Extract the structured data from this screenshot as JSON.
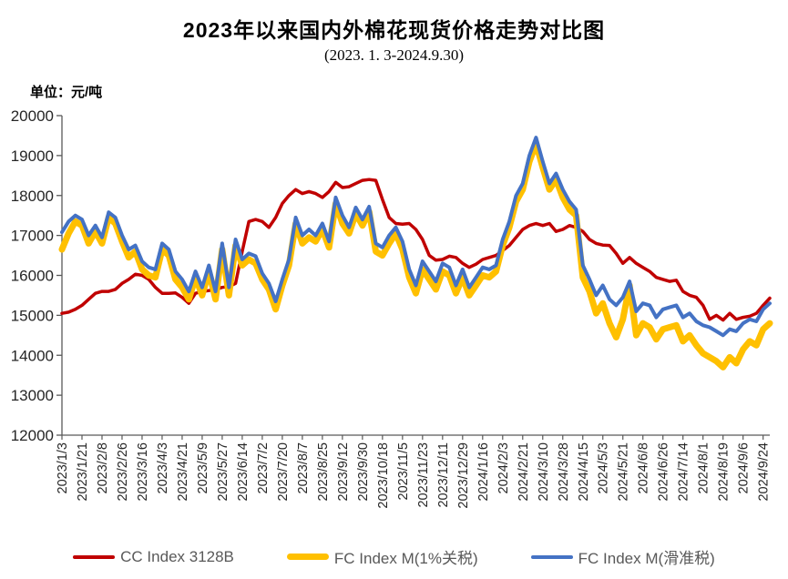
{
  "header": {
    "title": "2023年以来国内外棉花现货价格走势对比图",
    "subtitle": "(2023. 1. 3-2024.9.30)",
    "unit_label": "单位：元/吨"
  },
  "chart_data": {
    "type": "line",
    "title": "2023年以来国内外棉花现货价格走势对比图",
    "subtitle": "(2023. 1. 3-2024.9.30)",
    "ylabel": "元/吨",
    "ylim": [
      12000,
      20000
    ],
    "y_tick_step": 1000,
    "grid": false,
    "legend_position": "bottom",
    "y_tick_labels": [
      "12000",
      "13000",
      "14000",
      "15000",
      "16000",
      "17000",
      "18000",
      "19000",
      "20000"
    ],
    "x_tick_labels": [
      "2023/1/3",
      "2023/1/21",
      "2023/2/8",
      "2023/2/26",
      "2023/3/16",
      "2023/4/3",
      "2023/4/21",
      "2023/5/9",
      "2023/5/27",
      "2023/6/14",
      "2023/7/2",
      "2023/7/20",
      "2023/8/7",
      "2023/8/25",
      "2023/9/12",
      "2023/9/30",
      "2023/10/18",
      "2023/11/5",
      "2023/11/23",
      "2023/12/11",
      "2023/12/29",
      "2024/1/16",
      "2024/2/3",
      "2024/2/21",
      "2024/3/10",
      "2024/3/28",
      "2024/4/15",
      "2024/5/3",
      "2024/5/21",
      "2024/6/8",
      "2024/6/26",
      "2024/7/14",
      "2024/8/1",
      "2024/8/19",
      "2024/9/6",
      "2024/9/24"
    ],
    "x_tick_interval_days": 18,
    "total_days": 636,
    "sample_interval_days": 6,
    "series": [
      {
        "name": "CC Index 3128B",
        "color": "#C00000",
        "width": 3.5,
        "values": [
          15050,
          15080,
          15150,
          15250,
          15400,
          15550,
          15600,
          15600,
          15650,
          15800,
          15900,
          16030,
          16000,
          15900,
          15700,
          15550,
          15550,
          15560,
          15450,
          15300,
          15550,
          15600,
          15620,
          15650,
          15700,
          15720,
          15800,
          16600,
          17350,
          17400,
          17350,
          17200,
          17450,
          17800,
          18000,
          18150,
          18050,
          18100,
          18050,
          17950,
          18100,
          18330,
          18200,
          18220,
          18300,
          18380,
          18400,
          18380,
          17900,
          17450,
          17300,
          17280,
          17300,
          17150,
          16900,
          16500,
          16380,
          16400,
          16480,
          16450,
          16300,
          16200,
          16280,
          16400,
          16450,
          16500,
          16620,
          16750,
          16950,
          17150,
          17250,
          17300,
          17250,
          17300,
          17100,
          17150,
          17250,
          17200,
          17100,
          16900,
          16800,
          16760,
          16750,
          16550,
          16300,
          16450,
          16300,
          16200,
          16100,
          15950,
          15900,
          15850,
          15880,
          15600,
          15500,
          15450,
          15250,
          14900,
          15000,
          14880,
          15050,
          14900,
          14950,
          14980,
          15050,
          15250,
          15430
        ]
      },
      {
        "name": "FC Index M(1%关税)",
        "color": "#FFC000",
        "width": 7,
        "values": [
          16650,
          17050,
          17350,
          17250,
          16800,
          17100,
          16800,
          17450,
          17300,
          16850,
          16450,
          16600,
          16150,
          16000,
          15950,
          16650,
          16500,
          15900,
          15700,
          15400,
          15950,
          15500,
          16100,
          15400,
          16650,
          15500,
          16750,
          16250,
          16400,
          16300,
          15900,
          15650,
          15150,
          15750,
          16250,
          17300,
          16800,
          16950,
          16850,
          17150,
          16700,
          17800,
          17300,
          17050,
          17550,
          17250,
          17600,
          16600,
          16500,
          16800,
          17050,
          16650,
          15950,
          15550,
          16150,
          15900,
          15650,
          16100,
          16000,
          15550,
          15950,
          15500,
          15750,
          16000,
          15950,
          16100,
          16750,
          17200,
          17850,
          18150,
          18850,
          19300,
          18700,
          18150,
          18400,
          17950,
          17650,
          17500,
          15950,
          15600,
          15050,
          15300,
          14800,
          14450,
          14900,
          15750,
          14500,
          14800,
          14700,
          14400,
          14650,
          14700,
          14750,
          14350,
          14500,
          14250,
          14050,
          13950,
          13850,
          13700,
          13950,
          13800,
          14150,
          14350,
          14250,
          14650,
          14800
        ]
      },
      {
        "name": "FC Index M(滑准税)",
        "color": "#4472C4",
        "width": 4,
        "values": [
          17080,
          17350,
          17500,
          17400,
          17000,
          17250,
          16950,
          17580,
          17450,
          17000,
          16650,
          16750,
          16350,
          16200,
          16150,
          16800,
          16650,
          16100,
          15900,
          15600,
          16100,
          15700,
          16250,
          15600,
          16800,
          15700,
          16900,
          16400,
          16550,
          16480,
          16050,
          15800,
          15350,
          15900,
          16400,
          17450,
          17000,
          17150,
          17000,
          17300,
          16850,
          17950,
          17500,
          17200,
          17700,
          17400,
          17720,
          16800,
          16700,
          17000,
          17200,
          16850,
          16150,
          15750,
          16350,
          16100,
          15850,
          16300,
          16200,
          15750,
          16150,
          15700,
          15950,
          16200,
          16150,
          16250,
          16900,
          17350,
          18000,
          18300,
          19000,
          19450,
          18850,
          18300,
          18550,
          18150,
          17850,
          17650,
          16250,
          15900,
          15500,
          15750,
          15400,
          15250,
          15450,
          15850,
          15100,
          15300,
          15250,
          14950,
          15150,
          15200,
          15250,
          14950,
          15050,
          14850,
          14750,
          14700,
          14600,
          14500,
          14650,
          14600,
          14800,
          14900,
          14850,
          15150,
          15300
        ]
      }
    ]
  },
  "colors": {
    "axis": "#595959",
    "tick_label": "#262626",
    "legend_text": "#595959"
  }
}
